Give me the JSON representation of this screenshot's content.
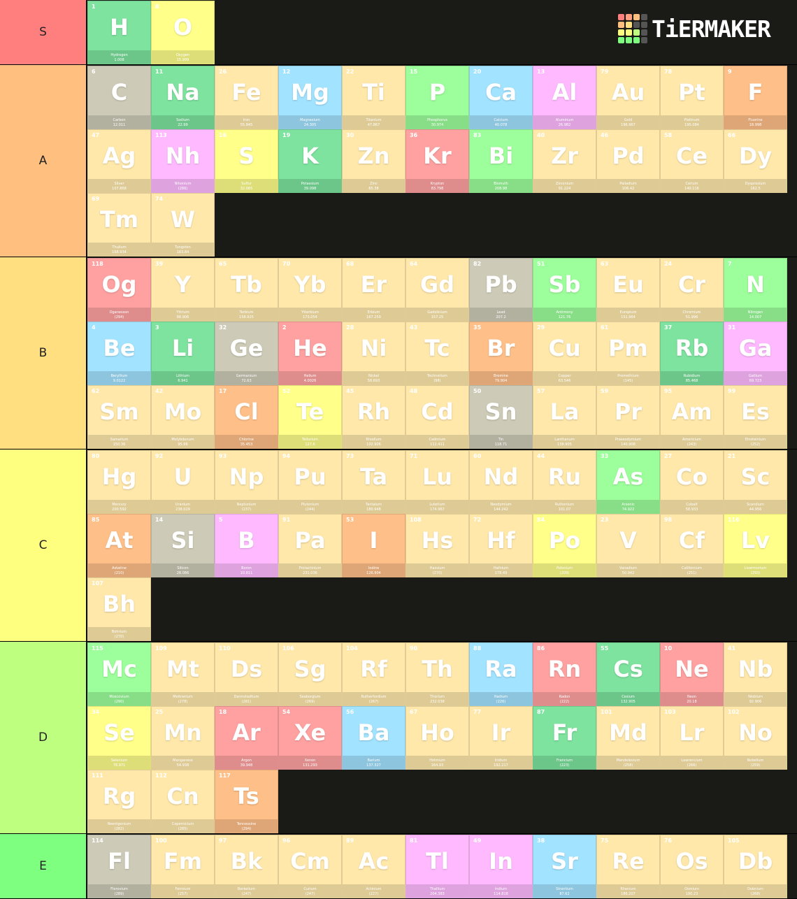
{
  "logo": "TiERMAKER",
  "tiers": [
    {
      "label": "S",
      "color": "#ff7f7f",
      "items": [
        {
          "number": 1,
          "symbol": "H",
          "name": "Hydrogen",
          "mass": "1.008",
          "color": "#7de39e"
        },
        {
          "number": 8,
          "symbol": "O",
          "name": "Oxygen",
          "mass": "15.999",
          "color": "#ffff8a"
        }
      ]
    },
    {
      "label": "A",
      "color": "#ffbf7f",
      "items": [
        {
          "number": 6,
          "symbol": "C",
          "name": "Carbon",
          "mass": "12.011",
          "color": "#cdcbb7"
        },
        {
          "number": 11,
          "symbol": "Na",
          "name": "Sodium",
          "mass": "22.99",
          "color": "#7de39e"
        },
        {
          "number": 26,
          "symbol": "Fe",
          "name": "Iron",
          "mass": "55.845",
          "color": "#ffe8aa"
        },
        {
          "number": 12,
          "symbol": "Mg",
          "name": "Magnesium",
          "mass": "24.305",
          "color": "#a2e3ff"
        },
        {
          "number": 22,
          "symbol": "Ti",
          "name": "Titanium",
          "mass": "47.867",
          "color": "#ffe8aa"
        },
        {
          "number": 15,
          "symbol": "P",
          "name": "Phosphorus",
          "mass": "30.974",
          "color": "#9dff9b"
        },
        {
          "number": 20,
          "symbol": "Ca",
          "name": "Calcium",
          "mass": "40.078",
          "color": "#a2e3ff"
        },
        {
          "number": 13,
          "symbol": "Al",
          "name": "Aluminum",
          "mass": "26.982",
          "color": "#ffbaff"
        },
        {
          "number": 79,
          "symbol": "Au",
          "name": "Gold",
          "mass": "196.967",
          "color": "#ffe8aa"
        },
        {
          "number": 78,
          "symbol": "Pt",
          "name": "Platinum",
          "mass": "195.084",
          "color": "#ffe8aa"
        },
        {
          "number": 9,
          "symbol": "F",
          "name": "Fluorine",
          "mass": "18.998",
          "color": "#ffbf88"
        },
        {
          "number": 47,
          "symbol": "Ag",
          "name": "Silver",
          "mass": "107.868",
          "color": "#ffe8aa"
        },
        {
          "number": 113,
          "symbol": "Nh",
          "name": "Nihonium",
          "mass": "(286)",
          "color": "#ffbaff"
        },
        {
          "number": 16,
          "symbol": "S",
          "name": "Sulfur",
          "mass": "32.065",
          "color": "#ffff8a"
        },
        {
          "number": 19,
          "symbol": "K",
          "name": "Potassium",
          "mass": "39.098",
          "color": "#7de39e"
        },
        {
          "number": 30,
          "symbol": "Zn",
          "name": "Zinc",
          "mass": "65.38",
          "color": "#ffe8aa"
        },
        {
          "number": 36,
          "symbol": "Kr",
          "name": "Krypton",
          "mass": "83.798",
          "color": "#ffa1a1"
        },
        {
          "number": 83,
          "symbol": "Bi",
          "name": "Bismuth",
          "mass": "208.98",
          "color": "#9dff9b"
        },
        {
          "number": 40,
          "symbol": "Zr",
          "name": "Zirconium",
          "mass": "91.224",
          "color": "#ffe8aa"
        },
        {
          "number": 46,
          "symbol": "Pd",
          "name": "Palladium",
          "mass": "106.42",
          "color": "#ffe8aa"
        },
        {
          "number": 58,
          "symbol": "Ce",
          "name": "Cerium",
          "mass": "140.116",
          "color": "#ffe8aa"
        },
        {
          "number": 66,
          "symbol": "Dy",
          "name": "Dysprosium",
          "mass": "162.5",
          "color": "#ffe8aa"
        },
        {
          "number": 69,
          "symbol": "Tm",
          "name": "Thulium",
          "mass": "168.934",
          "color": "#ffe8aa"
        },
        {
          "number": 74,
          "symbol": "W",
          "name": "Tungsten",
          "mass": "183.84",
          "color": "#ffe8aa"
        }
      ]
    },
    {
      "label": "B",
      "color": "#ffdf7f",
      "items": [
        {
          "number": 118,
          "symbol": "Og",
          "name": "Oganesson",
          "mass": "(294)",
          "color": "#ffa1a1"
        },
        {
          "number": 39,
          "symbol": "Y",
          "name": "Yttrium",
          "mass": "88.906",
          "color": "#ffe8aa"
        },
        {
          "number": 65,
          "symbol": "Tb",
          "name": "Terbium",
          "mass": "158.925",
          "color": "#ffe8aa"
        },
        {
          "number": 70,
          "symbol": "Yb",
          "name": "Ytterbium",
          "mass": "173.054",
          "color": "#ffe8aa"
        },
        {
          "number": 68,
          "symbol": "Er",
          "name": "Erbium",
          "mass": "167.259",
          "color": "#ffe8aa"
        },
        {
          "number": 64,
          "symbol": "Gd",
          "name": "Gadolinium",
          "mass": "157.25",
          "color": "#ffe8aa"
        },
        {
          "number": 82,
          "symbol": "Pb",
          "name": "Lead",
          "mass": "207.2",
          "color": "#cdcbb7"
        },
        {
          "number": 51,
          "symbol": "Sb",
          "name": "Antimony",
          "mass": "121.76",
          "color": "#9dff9b"
        },
        {
          "number": 63,
          "symbol": "Eu",
          "name": "Europium",
          "mass": "151.964",
          "color": "#ffe8aa"
        },
        {
          "number": 24,
          "symbol": "Cr",
          "name": "Chromium",
          "mass": "51.996",
          "color": "#ffe8aa"
        },
        {
          "number": 7,
          "symbol": "N",
          "name": "Nitrogen",
          "mass": "14.007",
          "color": "#9dff9b"
        },
        {
          "number": 4,
          "symbol": "Be",
          "name": "Beryllium",
          "mass": "9.0122",
          "color": "#a2e3ff"
        },
        {
          "number": 3,
          "symbol": "Li",
          "name": "Lithium",
          "mass": "6.941",
          "color": "#7de39e"
        },
        {
          "number": 32,
          "symbol": "Ge",
          "name": "Germanium",
          "mass": "72.63",
          "color": "#cdcbb7"
        },
        {
          "number": 2,
          "symbol": "He",
          "name": "Helium",
          "mass": "4.0026",
          "color": "#ffa1a1"
        },
        {
          "number": 28,
          "symbol": "Ni",
          "name": "Nickel",
          "mass": "58.693",
          "color": "#ffe8aa"
        },
        {
          "number": 43,
          "symbol": "Tc",
          "name": "Technetium",
          "mass": "(98)",
          "color": "#ffe8aa"
        },
        {
          "number": 35,
          "symbol": "Br",
          "name": "Bromine",
          "mass": "79.904",
          "color": "#ffbf88"
        },
        {
          "number": 29,
          "symbol": "Cu",
          "name": "Copper",
          "mass": "63.546",
          "color": "#ffe8aa"
        },
        {
          "number": 61,
          "symbol": "Pm",
          "name": "Promethium",
          "mass": "(145)",
          "color": "#ffe8aa"
        },
        {
          "number": 37,
          "symbol": "Rb",
          "name": "Rubidium",
          "mass": "85.468",
          "color": "#7de39e"
        },
        {
          "number": 31,
          "symbol": "Ga",
          "name": "Gallium",
          "mass": "69.723",
          "color": "#ffbaff"
        },
        {
          "number": 62,
          "symbol": "Sm",
          "name": "Samarium",
          "mass": "150.36",
          "color": "#ffe8aa"
        },
        {
          "number": 42,
          "symbol": "Mo",
          "name": "Molybdenum",
          "mass": "95.96",
          "color": "#ffe8aa"
        },
        {
          "number": 17,
          "symbol": "Cl",
          "name": "Chlorine",
          "mass": "35.453",
          "color": "#ffbf88"
        },
        {
          "number": 52,
          "symbol": "Te",
          "name": "Tellurium",
          "mass": "127.6",
          "color": "#ffff8a"
        },
        {
          "number": 45,
          "symbol": "Rh",
          "name": "Rhodium",
          "mass": "102.906",
          "color": "#ffe8aa"
        },
        {
          "number": 48,
          "symbol": "Cd",
          "name": "Cadmium",
          "mass": "112.411",
          "color": "#ffe8aa"
        },
        {
          "number": 50,
          "symbol": "Sn",
          "name": "Tin",
          "mass": "118.71",
          "color": "#cdcbb7"
        },
        {
          "number": 57,
          "symbol": "La",
          "name": "Lanthanum",
          "mass": "138.905",
          "color": "#ffe8aa"
        },
        {
          "number": 59,
          "symbol": "Pr",
          "name": "Praseodymium",
          "mass": "140.908",
          "color": "#ffe8aa"
        },
        {
          "number": 95,
          "symbol": "Am",
          "name": "Americium",
          "mass": "(243)",
          "color": "#ffe8aa"
        },
        {
          "number": 99,
          "symbol": "Es",
          "name": "Einsteinium",
          "mass": "(252)",
          "color": "#ffe8aa"
        }
      ]
    },
    {
      "label": "C",
      "color": "#ffff7f",
      "items": [
        {
          "number": 80,
          "symbol": "Hg",
          "name": "Mercury",
          "mass": "200.592",
          "color": "#ffe8aa"
        },
        {
          "number": 92,
          "symbol": "U",
          "name": "Uranium",
          "mass": "238.029",
          "color": "#ffe8aa"
        },
        {
          "number": 93,
          "symbol": "Np",
          "name": "Neptunium",
          "mass": "(237)",
          "color": "#ffe8aa"
        },
        {
          "number": 94,
          "symbol": "Pu",
          "name": "Plutonium",
          "mass": "(244)",
          "color": "#ffe8aa"
        },
        {
          "number": 73,
          "symbol": "Ta",
          "name": "Tantalum",
          "mass": "180.948",
          "color": "#ffe8aa"
        },
        {
          "number": 71,
          "symbol": "Lu",
          "name": "Lutetium",
          "mass": "174.967",
          "color": "#ffe8aa"
        },
        {
          "number": 60,
          "symbol": "Nd",
          "name": "Neodymium",
          "mass": "144.242",
          "color": "#ffe8aa"
        },
        {
          "number": 44,
          "symbol": "Ru",
          "name": "Ruthenium",
          "mass": "101.07",
          "color": "#ffe8aa"
        },
        {
          "number": 33,
          "symbol": "As",
          "name": "Arsenic",
          "mass": "74.922",
          "color": "#9dff9b"
        },
        {
          "number": 27,
          "symbol": "Co",
          "name": "Cobalt",
          "mass": "58.933",
          "color": "#ffe8aa"
        },
        {
          "number": 21,
          "symbol": "Sc",
          "name": "Scandium",
          "mass": "44.956",
          "color": "#ffe8aa"
        },
        {
          "number": 85,
          "symbol": "At",
          "name": "Astatine",
          "mass": "(210)",
          "color": "#ffbf88"
        },
        {
          "number": 14,
          "symbol": "Si",
          "name": "Silicon",
          "mass": "28.086",
          "color": "#cdcbb7"
        },
        {
          "number": 5,
          "symbol": "B",
          "name": "Boron",
          "mass": "10.811",
          "color": "#ffbaff"
        },
        {
          "number": 91,
          "symbol": "Pa",
          "name": "Protactinium",
          "mass": "231.036",
          "color": "#ffe8aa"
        },
        {
          "number": 53,
          "symbol": "I",
          "name": "Iodine",
          "mass": "126.904",
          "color": "#ffbf88"
        },
        {
          "number": 108,
          "symbol": "Hs",
          "name": "Hassium",
          "mass": "(270)",
          "color": "#ffe8aa"
        },
        {
          "number": 72,
          "symbol": "Hf",
          "name": "Hafnium",
          "mass": "178.49",
          "color": "#ffe8aa"
        },
        {
          "number": 84,
          "symbol": "Po",
          "name": "Polonium",
          "mass": "(209)",
          "color": "#ffff8a"
        },
        {
          "number": 23,
          "symbol": "V",
          "name": "Vanadium",
          "mass": "50.942",
          "color": "#ffe8aa"
        },
        {
          "number": 98,
          "symbol": "Cf",
          "name": "Californium",
          "mass": "(251)",
          "color": "#ffe8aa"
        },
        {
          "number": 116,
          "symbol": "Lv",
          "name": "Livermorium",
          "mass": "(293)",
          "color": "#ffff8a"
        },
        {
          "number": 107,
          "symbol": "Bh",
          "name": "Bohrium",
          "mass": "(270)",
          "color": "#ffe8aa"
        }
      ]
    },
    {
      "label": "D",
      "color": "#bfff7f",
      "items": [
        {
          "number": 115,
          "symbol": "Mc",
          "name": "Moscovium",
          "mass": "(290)",
          "color": "#9dff9b"
        },
        {
          "number": 109,
          "symbol": "Mt",
          "name": "Meitnerium",
          "mass": "(278)",
          "color": "#ffe8aa"
        },
        {
          "number": 110,
          "symbol": "Ds",
          "name": "Darmstadtium",
          "mass": "(281)",
          "color": "#ffe8aa"
        },
        {
          "number": 106,
          "symbol": "Sg",
          "name": "Seaborgium",
          "mass": "(269)",
          "color": "#ffe8aa"
        },
        {
          "number": 104,
          "symbol": "Rf",
          "name": "Rutherfordium",
          "mass": "(267)",
          "color": "#ffe8aa"
        },
        {
          "number": 90,
          "symbol": "Th",
          "name": "Thorium",
          "mass": "232.038",
          "color": "#ffe8aa"
        },
        {
          "number": 88,
          "symbol": "Ra",
          "name": "Radium",
          "mass": "(226)",
          "color": "#a2e3ff"
        },
        {
          "number": 86,
          "symbol": "Rn",
          "name": "Radon",
          "mass": "(222)",
          "color": "#ffa1a1"
        },
        {
          "number": 55,
          "symbol": "Cs",
          "name": "Cesium",
          "mass": "132.905",
          "color": "#7de39e"
        },
        {
          "number": 10,
          "symbol": "Ne",
          "name": "Neon",
          "mass": "20.18",
          "color": "#ffa1a1"
        },
        {
          "number": 41,
          "symbol": "Nb",
          "name": "Niobium",
          "mass": "92.906",
          "color": "#ffe8aa"
        },
        {
          "number": 34,
          "symbol": "Se",
          "name": "Selenium",
          "mass": "78.971",
          "color": "#ffff8a"
        },
        {
          "number": 25,
          "symbol": "Mn",
          "name": "Manganese",
          "mass": "54.938",
          "color": "#ffe8aa"
        },
        {
          "number": 18,
          "symbol": "Ar",
          "name": "Argon",
          "mass": "39.948",
          "color": "#ffa1a1"
        },
        {
          "number": 54,
          "symbol": "Xe",
          "name": "Xenon",
          "mass": "131.293",
          "color": "#ffa1a1"
        },
        {
          "number": 56,
          "symbol": "Ba",
          "name": "Barium",
          "mass": "137.327",
          "color": "#a2e3ff"
        },
        {
          "number": 67,
          "symbol": "Ho",
          "name": "Holmium",
          "mass": "164.93",
          "color": "#ffe8aa"
        },
        {
          "number": 77,
          "symbol": "Ir",
          "name": "Iridium",
          "mass": "192.217",
          "color": "#ffe8aa"
        },
        {
          "number": 87,
          "symbol": "Fr",
          "name": "Francium",
          "mass": "(223)",
          "color": "#7de39e"
        },
        {
          "number": 101,
          "symbol": "Md",
          "name": "Mendelevium",
          "mass": "(258)",
          "color": "#ffe8aa"
        },
        {
          "number": 103,
          "symbol": "Lr",
          "name": "Lawrencium",
          "mass": "(266)",
          "color": "#ffe8aa"
        },
        {
          "number": 102,
          "symbol": "No",
          "name": "Nobelium",
          "mass": "(259)",
          "color": "#ffe8aa"
        },
        {
          "number": 111,
          "symbol": "Rg",
          "name": "Roentgenium",
          "mass": "(282)",
          "color": "#ffe8aa"
        },
        {
          "number": 112,
          "symbol": "Cn",
          "name": "Copernicium",
          "mass": "(285)",
          "color": "#ffe8aa"
        },
        {
          "number": 117,
          "symbol": "Ts",
          "name": "Tennessine",
          "mass": "(294)",
          "color": "#ffbf88"
        }
      ]
    },
    {
      "label": "E",
      "color": "#7fff7f",
      "items": [
        {
          "number": 114,
          "symbol": "Fl",
          "name": "Flerovium",
          "mass": "(289)",
          "color": "#cdcbb7"
        },
        {
          "number": 100,
          "symbol": "Fm",
          "name": "Fermium",
          "mass": "(257)",
          "color": "#ffe8aa"
        },
        {
          "number": 97,
          "symbol": "Bk",
          "name": "Berkelium",
          "mass": "(247)",
          "color": "#ffe8aa"
        },
        {
          "number": 96,
          "symbol": "Cm",
          "name": "Curium",
          "mass": "(247)",
          "color": "#ffe8aa"
        },
        {
          "number": 89,
          "symbol": "Ac",
          "name": "Actinium",
          "mass": "(227)",
          "color": "#ffe8aa"
        },
        {
          "number": 81,
          "symbol": "Tl",
          "name": "Thallium",
          "mass": "204.383",
          "color": "#ffbaff"
        },
        {
          "number": 49,
          "symbol": "In",
          "name": "Indium",
          "mass": "114.818",
          "color": "#ffbaff"
        },
        {
          "number": 38,
          "symbol": "Sr",
          "name": "Strontium",
          "mass": "87.62",
          "color": "#a2e3ff"
        },
        {
          "number": 75,
          "symbol": "Re",
          "name": "Rhenium",
          "mass": "186.207",
          "color": "#ffe8aa"
        },
        {
          "number": 76,
          "symbol": "Os",
          "name": "Osmium",
          "mass": "190.23",
          "color": "#ffe8aa"
        },
        {
          "number": 105,
          "symbol": "Db",
          "name": "Dubnium",
          "mass": "(268)",
          "color": "#ffe8aa"
        }
      ]
    }
  ]
}
